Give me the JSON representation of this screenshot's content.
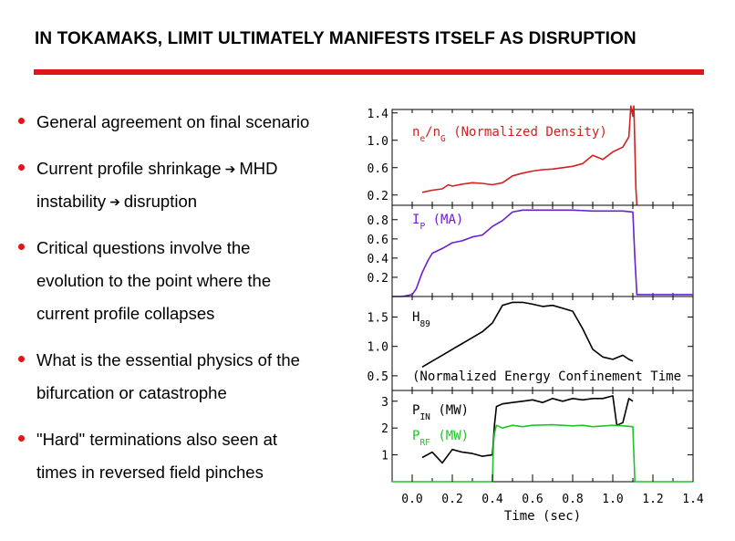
{
  "slide": {
    "title": "IN TOKAMAKS, LIMIT ULTIMATELY MANIFESTS ITSELF AS DISRUPTION",
    "accent_color": "#e0141b"
  },
  "bullets": [
    {
      "lines": [
        "General agreement on final scenario"
      ]
    },
    {
      "lines": [
        "Current profile shrinkage",
        "MHD",
        "instability",
        "disruption"
      ],
      "arrow_glyph": "➔"
    },
    {
      "lines": [
        "Critical questions involve the",
        "evolution to the point where the",
        "current profile collapses"
      ]
    },
    {
      "lines": [
        "What is the essential physics of the",
        "bifurcation or catastrophe"
      ]
    },
    {
      "lines": [
        "\"Hard\" terminations also seen at",
        "times in reversed field pinches"
      ]
    }
  ],
  "chart_data": [
    {
      "type": "line",
      "panel": "density",
      "label_main": "n",
      "label_sub": "e",
      "label_mid": "/n",
      "label_sub2": "G",
      "label_rest": " (Normalized Density)",
      "ylim": [
        0.05,
        1.45
      ],
      "yticks": [
        "1.4",
        "1.0",
        "0.6",
        "0.2"
      ],
      "ytick_values": [
        1.4,
        1.0,
        0.6,
        0.2
      ],
      "xlim": [
        -0.1,
        1.4
      ],
      "series": [
        {
          "color": "#d42020",
          "x": [
            0.05,
            0.1,
            0.15,
            0.18,
            0.2,
            0.25,
            0.3,
            0.35,
            0.4,
            0.45,
            0.5,
            0.55,
            0.6,
            0.65,
            0.7,
            0.75,
            0.8,
            0.85,
            0.9,
            0.95,
            1.0,
            1.05,
            1.08,
            1.09,
            1.1,
            1.105,
            1.11,
            1.115,
            1.12
          ],
          "y": [
            0.24,
            0.27,
            0.29,
            0.35,
            0.33,
            0.36,
            0.38,
            0.37,
            0.35,
            0.38,
            0.48,
            0.52,
            0.55,
            0.57,
            0.58,
            0.6,
            0.62,
            0.66,
            0.78,
            0.72,
            0.83,
            0.9,
            1.05,
            1.5,
            1.35,
            1.5,
            0.9,
            0.3,
            0.05
          ]
        }
      ]
    },
    {
      "type": "line",
      "panel": "plasma-current",
      "label_main": "I",
      "label_sub": "P",
      "label_rest": " (MA)",
      "ylim": [
        0.0,
        0.95
      ],
      "yticks": [
        "0.8",
        "0.6",
        "0.4",
        "0.2"
      ],
      "ytick_values": [
        0.8,
        0.6,
        0.4,
        0.2
      ],
      "xlim": [
        -0.1,
        1.4
      ],
      "series": [
        {
          "color": "#6a1fd1",
          "x": [
            -0.1,
            -0.05,
            0.0,
            0.02,
            0.05,
            0.08,
            0.1,
            0.15,
            0.2,
            0.25,
            0.3,
            0.35,
            0.4,
            0.45,
            0.5,
            0.55,
            0.6,
            0.7,
            0.8,
            0.9,
            1.0,
            1.05,
            1.1,
            1.11,
            1.12,
            1.2,
            1.3,
            1.4
          ],
          "y": [
            0.0,
            0.0,
            0.02,
            0.08,
            0.25,
            0.38,
            0.45,
            0.5,
            0.56,
            0.58,
            0.62,
            0.64,
            0.73,
            0.79,
            0.88,
            0.9,
            0.9,
            0.9,
            0.9,
            0.89,
            0.89,
            0.89,
            0.88,
            0.4,
            0.02,
            0.02,
            0.02,
            0.02
          ]
        }
      ]
    },
    {
      "type": "line",
      "panel": "confinement",
      "label_main": "H",
      "label_sub": "89",
      "label_rest": "",
      "annotation": "(Normalized Energy Confinement Time",
      "ylim": [
        0.25,
        1.85
      ],
      "yticks": [
        "1.5",
        "1.0",
        "0.5"
      ],
      "ytick_values": [
        1.5,
        1.0,
        0.5
      ],
      "xlim": [
        -0.1,
        1.4
      ],
      "series": [
        {
          "color": "#000000",
          "x": [
            0.05,
            0.1,
            0.15,
            0.2,
            0.25,
            0.3,
            0.35,
            0.4,
            0.45,
            0.5,
            0.55,
            0.6,
            0.65,
            0.7,
            0.75,
            0.8,
            0.85,
            0.9,
            0.95,
            1.0,
            1.05,
            1.08,
            1.1
          ],
          "y": [
            0.65,
            0.75,
            0.85,
            0.95,
            1.05,
            1.15,
            1.25,
            1.4,
            1.7,
            1.75,
            1.75,
            1.72,
            1.68,
            1.7,
            1.65,
            1.6,
            1.3,
            0.95,
            0.82,
            0.78,
            0.85,
            0.78,
            0.75
          ]
        }
      ]
    },
    {
      "type": "line",
      "panel": "power",
      "ylim": [
        0.0,
        3.4
      ],
      "yticks": [
        "3",
        "2",
        "1"
      ],
      "ytick_values": [
        3,
        2,
        1
      ],
      "xlim": [
        -0.1,
        1.4
      ],
      "xticks": [
        "0.0",
        "0.2",
        "0.4",
        "0.6",
        "0.8",
        "1.0",
        "1.2",
        "1.4"
      ],
      "xtick_values": [
        0.0,
        0.2,
        0.4,
        0.6,
        0.8,
        1.0,
        1.2,
        1.4
      ],
      "xlabel": "Time (sec)",
      "series": [
        {
          "name_main": "P",
          "name_sub": "IN",
          "name_rest": " (MW)",
          "color": "#000000",
          "x": [
            0.05,
            0.1,
            0.15,
            0.2,
            0.25,
            0.3,
            0.35,
            0.4,
            0.41,
            0.42,
            0.45,
            0.5,
            0.55,
            0.6,
            0.65,
            0.7,
            0.75,
            0.8,
            0.85,
            0.9,
            0.95,
            1.0,
            1.02,
            1.05,
            1.08,
            1.1
          ],
          "y": [
            0.9,
            1.1,
            0.7,
            1.2,
            1.1,
            1.05,
            0.95,
            1.0,
            2.1,
            2.8,
            2.9,
            2.95,
            3.0,
            3.05,
            2.95,
            3.1,
            3.0,
            3.1,
            3.05,
            3.1,
            3.1,
            3.2,
            2.1,
            2.2,
            3.1,
            3.0
          ]
        },
        {
          "name_main": "P",
          "name_sub": "RF",
          "name_rest": " (MW)",
          "color": "#22c22a",
          "x": [
            -0.1,
            0.0,
            0.1,
            0.2,
            0.3,
            0.4,
            0.405,
            0.41,
            0.42,
            0.45,
            0.5,
            0.55,
            0.6,
            0.7,
            0.8,
            0.85,
            0.9,
            1.0,
            1.05,
            1.1,
            1.105,
            1.11,
            1.2,
            1.3,
            1.4
          ],
          "y": [
            0.0,
            0.0,
            0.0,
            0.0,
            0.0,
            0.0,
            1.4,
            1.8,
            2.1,
            2.0,
            2.1,
            2.05,
            2.1,
            2.12,
            2.08,
            2.1,
            2.05,
            2.1,
            2.08,
            2.05,
            1.0,
            0.0,
            0.0,
            0.0,
            0.0
          ]
        }
      ]
    }
  ]
}
